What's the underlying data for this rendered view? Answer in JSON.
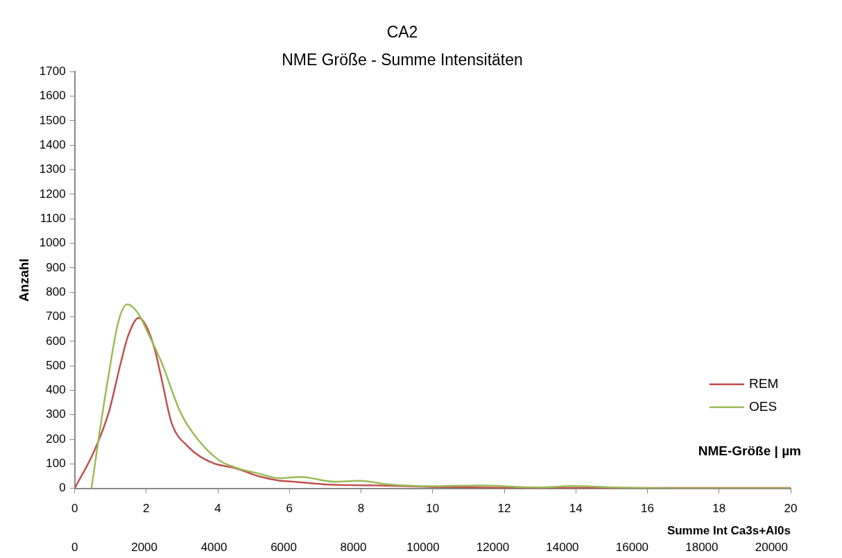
{
  "chart_data": {
    "type": "line",
    "title": "CA2",
    "subtitle": "NME Größe - Summe Intensitäten",
    "xlabel": "NME-Größe | µm",
    "x2label": "Summe Int Ca3s+Al0s",
    "ylabel": "Anzahl",
    "xlim": [
      0,
      20
    ],
    "xticks": [
      0,
      2,
      4,
      6,
      8,
      10,
      12,
      14,
      16,
      18,
      20
    ],
    "x2lim": [
      0,
      20550
    ],
    "x2ticks": [
      0,
      2000,
      4000,
      6000,
      8000,
      10000,
      12000,
      14000,
      16000,
      18000,
      20000
    ],
    "ylim": [
      0,
      1700
    ],
    "yticks": [
      0,
      100,
      200,
      300,
      400,
      500,
      600,
      700,
      800,
      900,
      1000,
      1100,
      1200,
      1300,
      1400,
      1500,
      1600,
      1700
    ],
    "grid": false,
    "legend": "right",
    "marker": "none",
    "line_style": "solid",
    "series": [
      {
        "name": "REM",
        "color": "#c0504d",
        "x": [
          0,
          0.55,
          0.95,
          1.29,
          1.49,
          1.79,
          1.99,
          2.23,
          2.43,
          2.7,
          3.16,
          3.84,
          4.51,
          5.11,
          5.71,
          6.1,
          7.1,
          8.1,
          9.1,
          10.1,
          12,
          14,
          16,
          18,
          20
        ],
        "values": [
          0,
          154,
          309,
          513,
          621,
          696,
          665,
          571,
          446,
          271,
          172,
          105,
          82,
          51,
          32,
          28,
          16,
          13,
          10,
          6,
          3,
          2,
          2,
          2,
          2
        ]
      },
      {
        "name": "OES",
        "color": "#9bbb59",
        "x": [
          0.47,
          0.68,
          0.95,
          1.22,
          1.47,
          1.76,
          2.09,
          2.43,
          2.96,
          3.43,
          4.04,
          4.57,
          5.11,
          5.71,
          6.32,
          7.22,
          7.98,
          8.73,
          9.94,
          11.35,
          12.96,
          13.96,
          15.17,
          17.2,
          19.7,
          20
        ],
        "values": [
          0,
          213,
          464,
          679,
          751,
          717,
          621,
          513,
          309,
          202,
          115,
          82,
          62,
          42,
          47,
          28,
          31,
          17,
          9,
          12,
          4,
          10,
          4,
          1,
          1,
          1
        ]
      }
    ]
  }
}
